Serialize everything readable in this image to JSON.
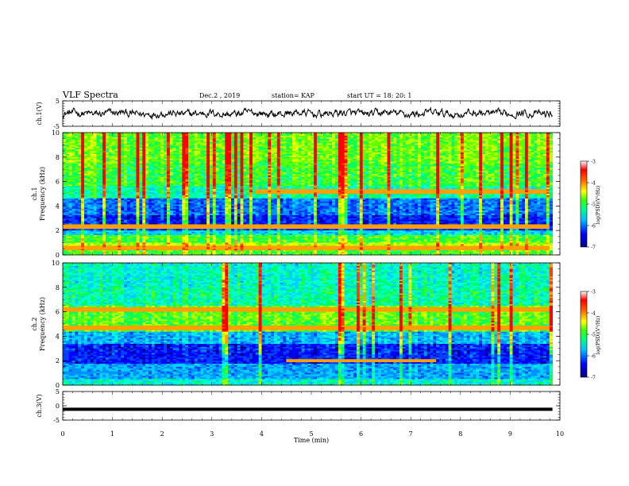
{
  "header": {
    "title": "VLF Spectra",
    "date": "Dec.2 , 2019",
    "station": "station= KAP",
    "start": "start UT = 18: 20: 1"
  },
  "colors": {
    "line": "#000000",
    "background": "#ffffff",
    "colormap": [
      "#00008b",
      "#0000ff",
      "#0080ff",
      "#00ffff",
      "#00ff80",
      "#80ff00",
      "#ffff00",
      "#ff8000",
      "#ff0000",
      "#ffffff"
    ]
  },
  "chart_data": [
    {
      "type": "line",
      "ylabel": "ch.1(V)",
      "xlim": [
        0,
        10
      ],
      "ylim": [
        -5,
        5
      ],
      "yticks": [
        5,
        -5
      ],
      "x_range": [
        0,
        9.85
      ],
      "y_range": [
        -2.2,
        2.2
      ]
    },
    {
      "type": "heatmap",
      "ylabel": "ch.1\nFrequency (kHz)",
      "xlim": [
        0,
        10
      ],
      "ylim": [
        0,
        10
      ],
      "yticks": [
        0,
        2,
        4,
        6,
        8,
        10
      ],
      "colorbar": {
        "label": "log(PSD)(V²/Hz)",
        "range": [
          -7,
          -3
        ],
        "ticks": [
          -3,
          -4,
          -5,
          -6,
          -7
        ]
      },
      "features": [
        {
          "description": "horizontal band",
          "freq_khz": 5.2,
          "x_start": 3.9,
          "x_end": 9.8
        },
        {
          "description": "horizontal band",
          "freq_khz": 2.3,
          "x_start": 0,
          "x_end": 9.8
        },
        {
          "description": "horizontal band",
          "freq_khz": 0.6,
          "x_start": 0,
          "x_end": 9.8
        }
      ]
    },
    {
      "type": "heatmap",
      "ylabel": "ch.2\nFrequency (kHz)",
      "xlim": [
        0,
        10
      ],
      "ylim": [
        0,
        10
      ],
      "yticks": [
        0,
        2,
        4,
        6,
        8,
        10
      ],
      "colorbar": {
        "label": "log(PSD)(V²/Hz)",
        "range": [
          -7,
          -3
        ],
        "ticks": [
          -3,
          -4,
          -5,
          -6,
          -7
        ]
      },
      "features": [
        {
          "description": "horizontal band",
          "freq_khz": 6.2,
          "x_start": 0,
          "x_end": 9.8
        },
        {
          "description": "horizontal band",
          "freq_khz": 4.7,
          "x_start": 0,
          "x_end": 9.8
        },
        {
          "description": "horizontal band",
          "freq_khz": 2.0,
          "x_start": 4.5,
          "x_end": 7.5
        }
      ]
    },
    {
      "type": "line",
      "ylabel": "ch.3(V)",
      "xlabel": "Time (min)",
      "xlim": [
        0,
        10
      ],
      "ylim": [
        -5,
        5
      ],
      "yticks": [
        5,
        0,
        -5
      ],
      "xticks": [
        0,
        1,
        2,
        3,
        4,
        5,
        6,
        7,
        8,
        9,
        10
      ],
      "x_range": [
        0,
        9.85
      ],
      "y_constant": -1.2
    }
  ]
}
